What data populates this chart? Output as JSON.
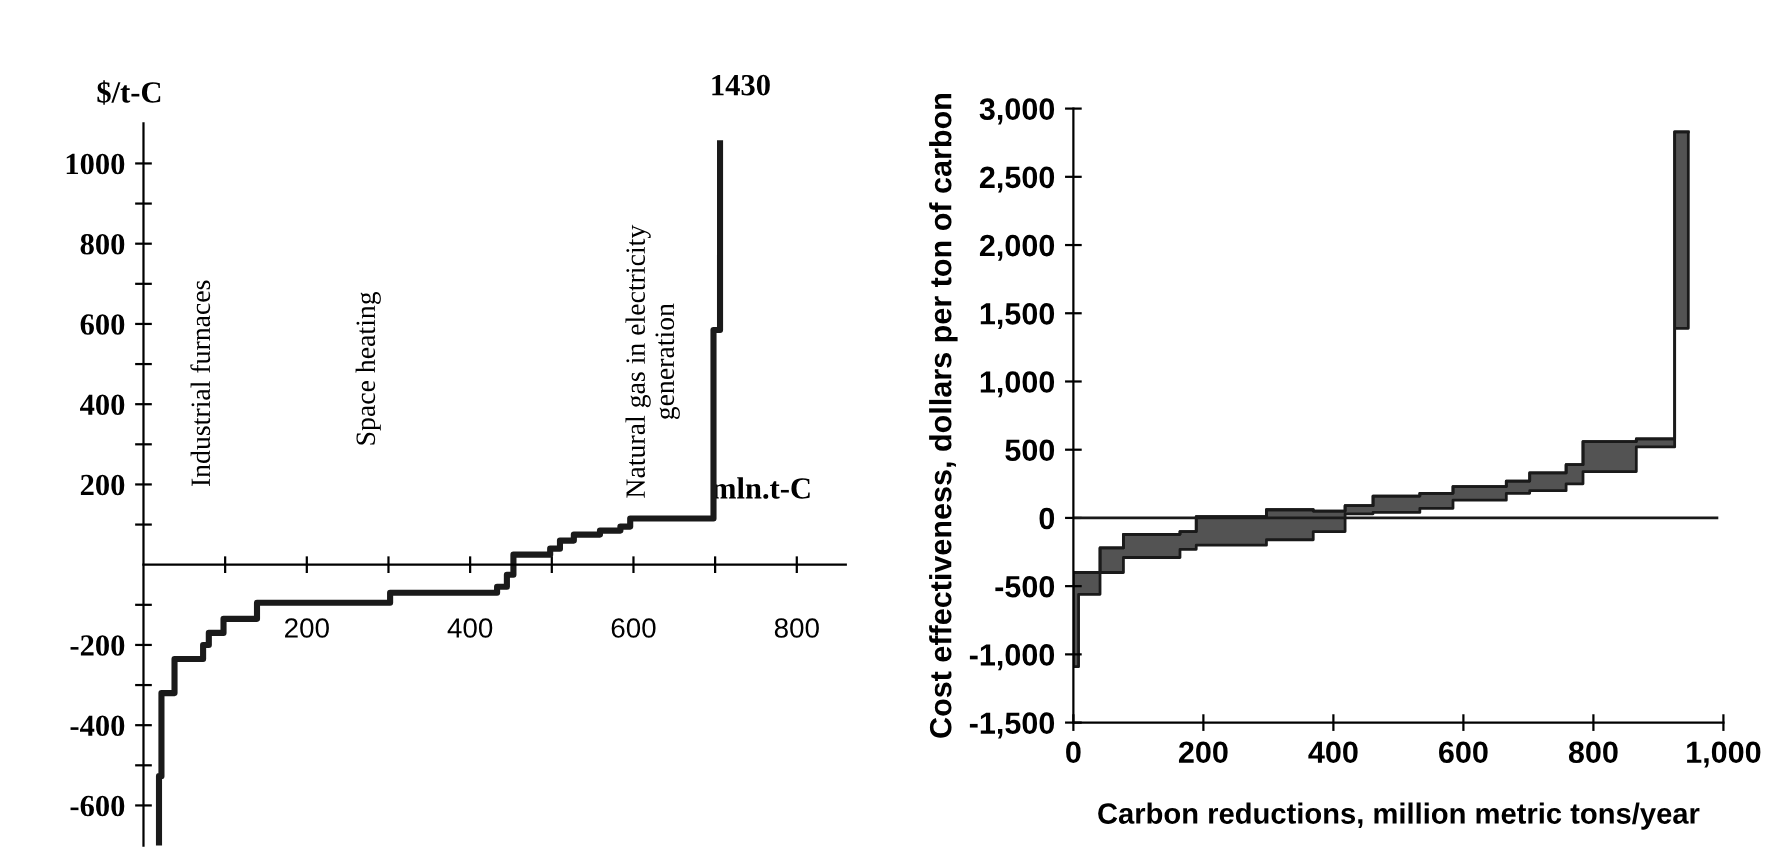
{
  "chart_data": [
    {
      "type": "step",
      "xlabel": "mln.t-C",
      "ylabel": "$/t-C",
      "series": [
        {
          "color": "#1a1a1a",
          "x": [
            19,
            19,
            22,
            38,
            73,
            80,
            98,
            139,
            302,
            433,
            445,
            453,
            498,
            510,
            527,
            559,
            584,
            596,
            698,
            706
          ],
          "values": [
            -700,
            -527,
            -320,
            -235,
            -200,
            -170,
            -135,
            -95,
            -70,
            -55,
            -25,
            25,
            40,
            60,
            75,
            85,
            95,
            115,
            585,
            1050
          ]
        }
      ],
      "xlim": [
        0,
        860
      ],
      "xticks": [
        {
          "value": 100,
          "label": null
        },
        200,
        {
          "value": 300,
          "label": null
        },
        400,
        {
          "value": 500,
          "label": null
        },
        600,
        {
          "value": 700,
          "label": null
        },
        800
      ],
      "ylim": [
        -700,
        1100
      ],
      "yticks": [
        -600,
        {
          "value": -500,
          "label": null
        },
        -400,
        {
          "value": -300,
          "label": null
        },
        -200,
        {
          "value": -100,
          "label": null
        },
        {
          "value": 100,
          "label": null
        },
        200,
        {
          "value": 300,
          "label": null
        },
        400,
        {
          "value": 500,
          "label": null
        },
        600,
        {
          "value": 700,
          "label": null
        },
        800,
        {
          "value": 900,
          "label": null
        },
        1000
      ],
      "annotations": [
        "Industrial furnaces",
        "Space heating",
        "Natural gas in electricity\ngeneration",
        "1430"
      ],
      "grid": false
    },
    {
      "type": "step",
      "xlabel": "Carbon reductions, million metric tons/year",
      "ylabel": "Cost effectiveness, dollars per ton of carbon",
      "series": [
        {
          "color": "#1a1a1a",
          "x": [
            0,
            8,
            41,
            77,
            164,
            189,
            297,
            369,
            418,
            461,
            533,
            584,
            666,
            702,
            758,
            784,
            866,
            925,
            946
          ],
          "values": [
            -400,
            -400,
            -220,
            -120,
            -100,
            10,
            60,
            50,
            90,
            160,
            180,
            230,
            270,
            330,
            390,
            560,
            580,
            2830,
            2830
          ],
          "upper": [
            -400,
            -400,
            -220,
            -120,
            -100,
            10,
            60,
            50,
            90,
            160,
            180,
            230,
            270,
            330,
            390,
            560,
            580,
            2830,
            2830
          ],
          "lower": [
            -1090,
            -560,
            -400,
            -290,
            -230,
            -200,
            -160,
            -100,
            30,
            40,
            70,
            130,
            180,
            200,
            250,
            340,
            520,
            1390,
            1390
          ]
        }
      ],
      "xlim": [
        0,
        1000
      ],
      "xticks": [
        0,
        200,
        400,
        600,
        800,
        {
          "value": 1000,
          "label": "1,000"
        }
      ],
      "ylim": [
        -1500,
        3000
      ],
      "yticks": [
        {
          "value": -1500,
          "label": "-1,500"
        },
        {
          "value": -1000,
          "label": "-1,000"
        },
        -500,
        0,
        500,
        {
          "value": 1000,
          "label": "1,000"
        },
        {
          "value": 1500,
          "label": "1,500"
        },
        {
          "value": 2000,
          "label": "2,000"
        },
        {
          "value": 2500,
          "label": "2,500"
        },
        {
          "value": 3000,
          "label": "3,000"
        }
      ],
      "ref_lines": [
        {
          "axis": "y",
          "value": 0,
          "color": "#1a1a1a"
        }
      ],
      "grid": false
    }
  ]
}
